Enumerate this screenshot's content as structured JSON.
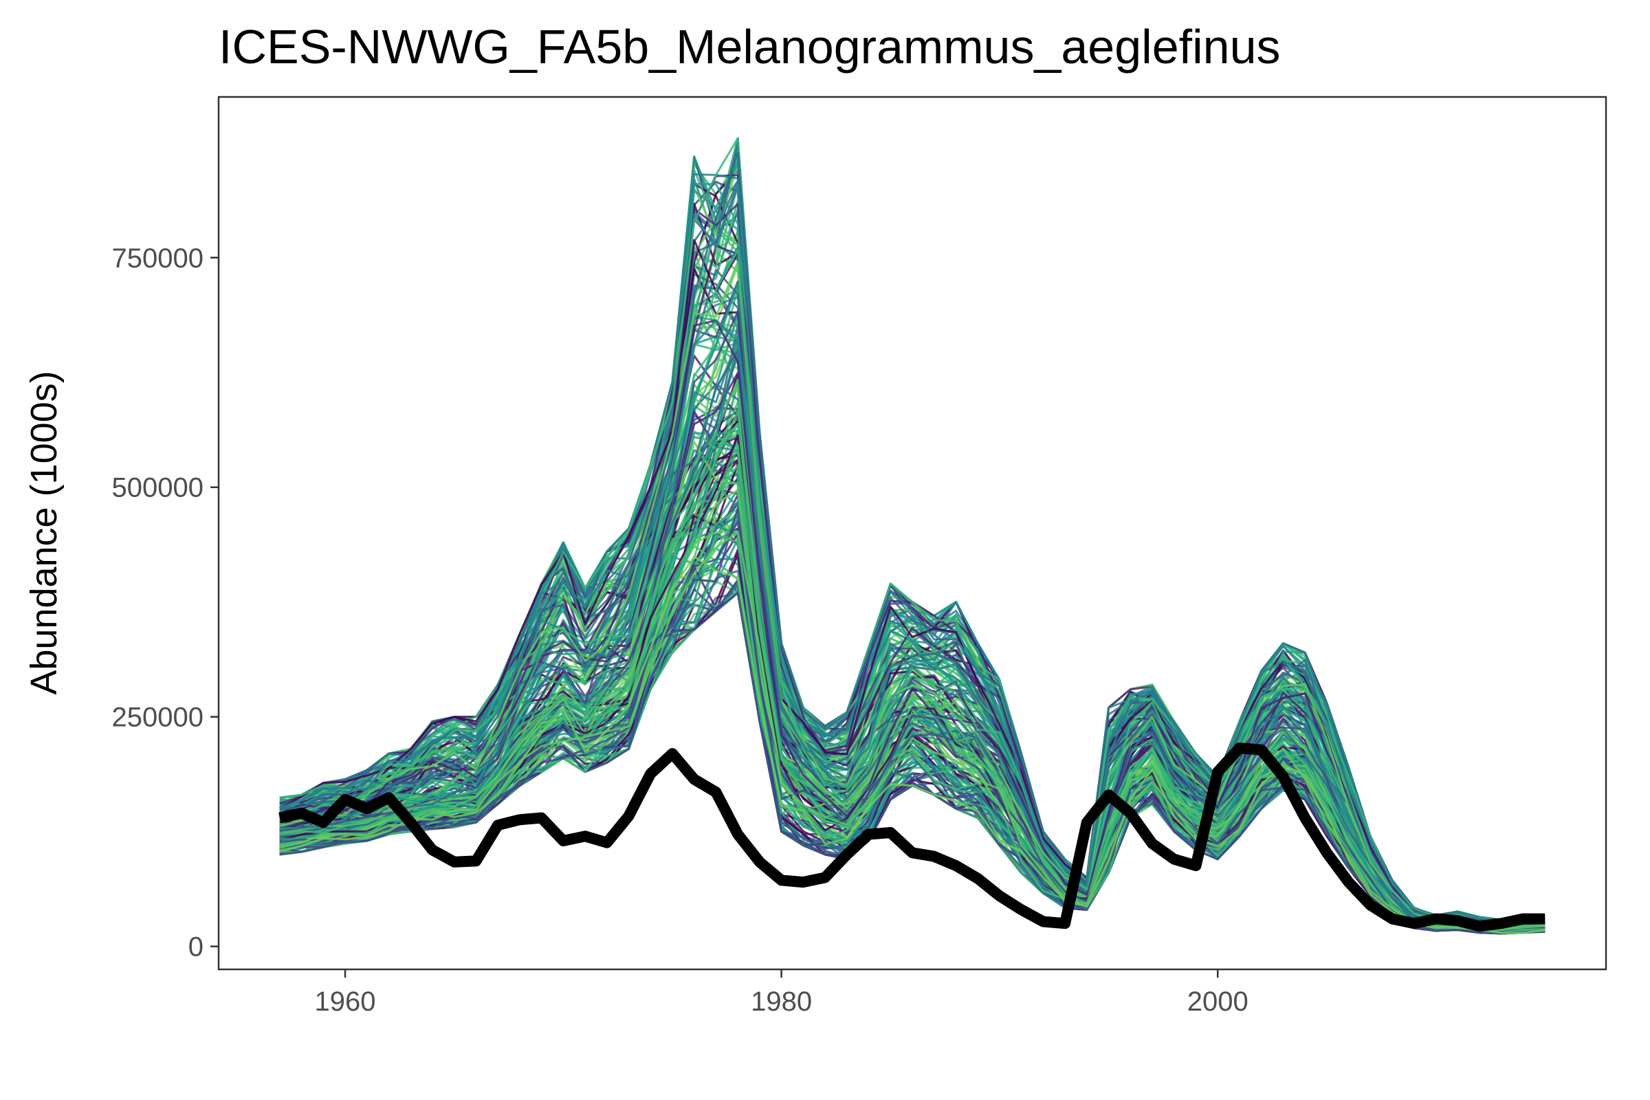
{
  "chart_data": {
    "type": "line",
    "title": "ICES-NWWG_FA5b_Melanogrammus_aeglefinus",
    "xlabel": "",
    "ylabel": "Abundance (1000s)",
    "xlim": [
      1954.2,
      2017.8
    ],
    "ylim": [
      -25000,
      925000
    ],
    "x_ticks": [
      1960,
      1980,
      2000
    ],
    "x_tick_labels": [
      "1960",
      "1980",
      "2000"
    ],
    "y_ticks": [
      0,
      250000,
      500000,
      750000
    ],
    "y_tick_labels": [
      "0",
      "250000",
      "500000",
      "750000"
    ],
    "grid": false,
    "legend": "none",
    "x": [
      1957,
      1958,
      1959,
      1960,
      1961,
      1962,
      1963,
      1964,
      1965,
      1966,
      1967,
      1968,
      1969,
      1970,
      1971,
      1972,
      1973,
      1974,
      1975,
      1976,
      1977,
      1978,
      1979,
      1980,
      1981,
      1982,
      1983,
      1984,
      1985,
      1986,
      1987,
      1988,
      1989,
      1990,
      1991,
      1992,
      1993,
      1994,
      1995,
      1996,
      1997,
      1998,
      1999,
      2000,
      2001,
      2002,
      2003,
      2004,
      2005,
      2006,
      2007,
      2008,
      2009,
      2010,
      2011,
      2012,
      2013,
      2014,
      2015
    ],
    "ensemble": {
      "name": "",
      "count": 180,
      "colors": [
        "#440154",
        "#482878",
        "#3e4989",
        "#31688e",
        "#26828e",
        "#1f9e89",
        "#35b779",
        "#3fbc73",
        "#5ec962",
        "#6ece58"
      ],
      "median": [
        125000,
        128000,
        132000,
        135000,
        140000,
        150000,
        158000,
        165000,
        168000,
        170000,
        195000,
        235000,
        265000,
        285000,
        265000,
        290000,
        310000,
        385000,
        460000,
        520000,
        560000,
        585000,
        375000,
        235000,
        205000,
        175000,
        162000,
        195000,
        250000,
        280000,
        268000,
        255000,
        235000,
        205000,
        155000,
        105000,
        70000,
        58000,
        145000,
        210000,
        230000,
        185000,
        160000,
        140000,
        175000,
        215000,
        240000,
        225000,
        180000,
        130000,
        85000,
        50000,
        30000,
        25000,
        28000,
        24000,
        22000,
        24000,
        26000
      ],
      "upper": [
        162000,
        165000,
        178000,
        182000,
        192000,
        210000,
        215000,
        245000,
        250000,
        250000,
        285000,
        340000,
        395000,
        440000,
        390000,
        430000,
        455000,
        525000,
        615000,
        860000,
        840000,
        880000,
        560000,
        330000,
        260000,
        240000,
        255000,
        325000,
        395000,
        375000,
        360000,
        375000,
        330000,
        290000,
        210000,
        125000,
        95000,
        75000,
        260000,
        280000,
        285000,
        245000,
        210000,
        185000,
        245000,
        300000,
        330000,
        320000,
        265000,
        195000,
        120000,
        72000,
        42000,
        34000,
        38000,
        32000,
        29000,
        30000,
        32000
      ],
      "lower": [
        100000,
        103000,
        108000,
        112000,
        115000,
        122000,
        125000,
        128000,
        130000,
        135000,
        155000,
        175000,
        190000,
        205000,
        190000,
        200000,
        215000,
        280000,
        320000,
        345000,
        365000,
        385000,
        245000,
        125000,
        110000,
        100000,
        95000,
        115000,
        160000,
        175000,
        165000,
        150000,
        140000,
        110000,
        80000,
        58000,
        42000,
        40000,
        80000,
        140000,
        155000,
        125000,
        105000,
        95000,
        120000,
        150000,
        170000,
        160000,
        120000,
        85000,
        55000,
        32000,
        20000,
        17000,
        18000,
        15000,
        14000,
        15000,
        16000
      ]
    },
    "series": [
      {
        "name": "",
        "color": "#000000",
        "values": [
          140000,
          145000,
          135000,
          160000,
          150000,
          162000,
          135000,
          105000,
          92000,
          93000,
          132000,
          138000,
          140000,
          115000,
          120000,
          113000,
          142000,
          188000,
          210000,
          182000,
          168000,
          122000,
          92000,
          72000,
          70000,
          75000,
          100000,
          122000,
          124000,
          102000,
          98000,
          88000,
          74000,
          55000,
          40000,
          27000,
          25000,
          135000,
          165000,
          145000,
          112000,
          95000,
          88000,
          190000,
          216000,
          214000,
          185000,
          140000,
          102000,
          70000,
          45000,
          30000,
          25000,
          30000,
          28000,
          22000,
          25000,
          30000,
          30000
        ]
      }
    ]
  }
}
